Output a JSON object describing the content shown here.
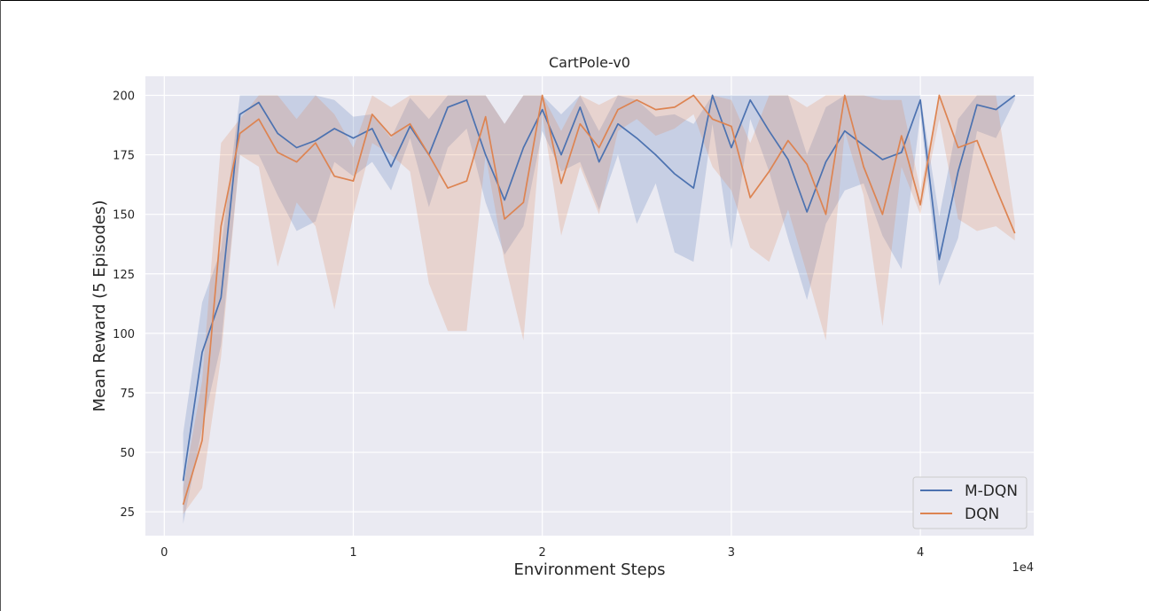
{
  "chart_data": {
    "type": "line",
    "title": "CartPole-v0",
    "xlabel": "Environment Steps",
    "ylabel": "Mean Reward (5 Episodes)",
    "x_offset_label": "1e4",
    "xlim": [
      -0.1,
      4.6
    ],
    "ylim": [
      15,
      208
    ],
    "xticks": [
      0,
      1,
      2,
      3,
      4
    ],
    "xtick_labels": [
      "0",
      "1",
      "2",
      "3",
      "4"
    ],
    "yticks": [
      25,
      50,
      75,
      100,
      125,
      150,
      175,
      200
    ],
    "ytick_labels": [
      "25",
      "50",
      "75",
      "100",
      "125",
      "150",
      "175",
      "200"
    ],
    "grid": true,
    "legend_position": "lower-right",
    "x": [
      0.1,
      0.2,
      0.3,
      0.4,
      0.5,
      0.6,
      0.7,
      0.8,
      0.9,
      1.0,
      1.1,
      1.2,
      1.3,
      1.4,
      1.5,
      1.6,
      1.7,
      1.8,
      1.9,
      2.0,
      2.1,
      2.2,
      2.3,
      2.4,
      2.5,
      2.6,
      2.7,
      2.8,
      2.9,
      3.0,
      3.1,
      3.2,
      3.3,
      3.4,
      3.5,
      3.6,
      3.7,
      3.8,
      3.9,
      4.0,
      4.1,
      4.2,
      4.3,
      4.4,
      4.5
    ],
    "series": [
      {
        "name": "M-DQN",
        "color": "#4c72b0",
        "values": [
          38,
          92,
          115,
          192,
          197,
          184,
          178,
          181,
          186,
          182,
          186,
          170,
          187,
          175,
          195,
          198,
          175,
          156,
          178,
          194,
          175,
          195,
          172,
          188,
          182,
          175,
          167,
          161,
          200,
          178,
          198,
          185,
          173,
          151,
          172,
          185,
          179,
          173,
          176,
          198,
          131,
          168,
          196,
          194,
          200
        ],
        "lower": [
          20,
          60,
          95,
          175,
          175,
          158,
          143,
          147,
          172,
          166,
          172,
          160,
          182,
          153,
          178,
          186,
          155,
          133,
          145,
          185,
          168,
          172,
          152,
          175,
          146,
          163,
          134,
          130,
          188,
          135,
          190,
          168,
          140,
          114,
          146,
          160,
          163,
          141,
          127,
          192,
          120,
          140,
          185,
          182,
          198
        ],
        "upper": [
          58,
          113,
          135,
          200,
          200,
          200,
          200,
          200,
          198,
          191,
          192,
          182,
          199,
          190,
          200,
          200,
          200,
          188,
          200,
          200,
          192,
          200,
          185,
          200,
          198,
          191,
          192,
          188,
          200,
          200,
          200,
          200,
          200,
          175,
          195,
          200,
          200,
          200,
          200,
          200,
          149,
          190,
          200,
          200,
          200
        ]
      },
      {
        "name": "DQN",
        "color": "#dd8452",
        "values": [
          28,
          55,
          145,
          184,
          190,
          176,
          172,
          180,
          166,
          164,
          192,
          183,
          188,
          175,
          161,
          164,
          191,
          148,
          155,
          200,
          163,
          188,
          178,
          194,
          198,
          194,
          195,
          200,
          190,
          187,
          157,
          168,
          181,
          171,
          150,
          200,
          170,
          150,
          183,
          154,
          200,
          178,
          181,
          161,
          142
        ],
        "lower": [
          24,
          35,
          90,
          175,
          170,
          128,
          155,
          145,
          110,
          150,
          180,
          175,
          168,
          121,
          101,
          101,
          175,
          130,
          97,
          192,
          141,
          170,
          150,
          185,
          190,
          183,
          186,
          192,
          170,
          160,
          136,
          130,
          152,
          125,
          97,
          185,
          158,
          103,
          170,
          150,
          190,
          148,
          143,
          145,
          139
        ],
        "upper": [
          35,
          80,
          180,
          190,
          200,
          200,
          190,
          200,
          192,
          178,
          200,
          195,
          200,
          200,
          200,
          200,
          200,
          188,
          200,
          200,
          185,
          200,
          196,
          200,
          200,
          200,
          200,
          200,
          200,
          198,
          180,
          200,
          200,
          195,
          200,
          200,
          200,
          198,
          198,
          160,
          200,
          200,
          200,
          200,
          147
        ]
      }
    ]
  }
}
